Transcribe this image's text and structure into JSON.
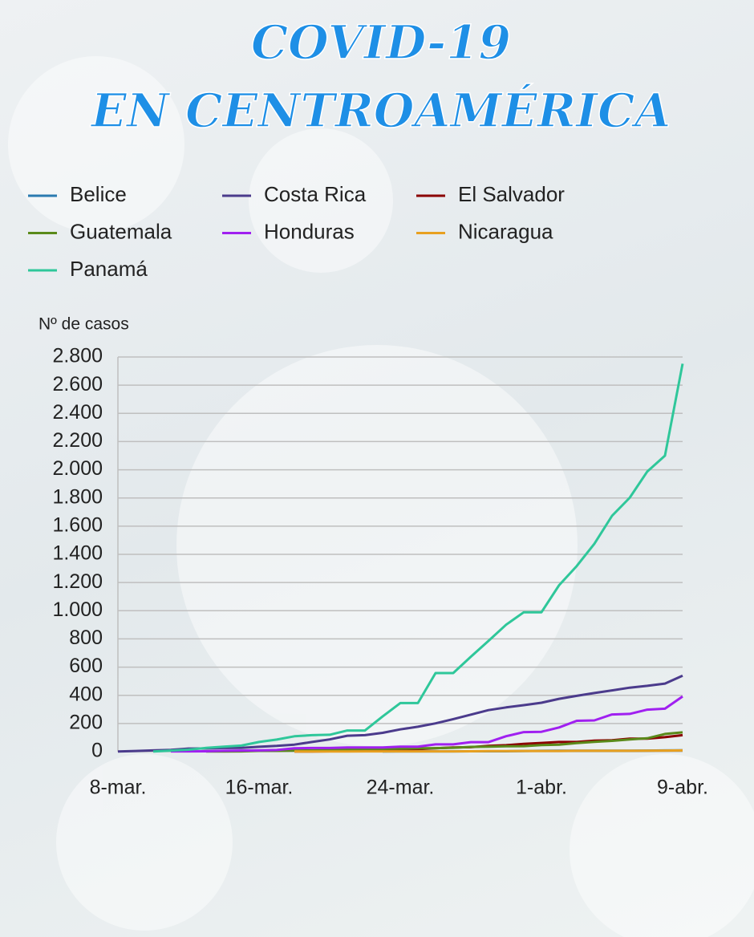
{
  "chart_data": {
    "type": "line",
    "title": "COVID-19",
    "subtitle": "EN CENTROAMÉRICA",
    "y_label": "Nº de casos",
    "categories": [
      "8-mar.",
      null,
      null,
      null,
      null,
      null,
      null,
      null,
      "16-mar.",
      null,
      null,
      null,
      null,
      null,
      null,
      null,
      "24-mar.",
      null,
      null,
      null,
      null,
      null,
      null,
      null,
      "1-abr.",
      null,
      null,
      null,
      null,
      null,
      null,
      null,
      "9-abr."
    ],
    "ylim": [
      0,
      2800
    ],
    "yticks": [
      0,
      200,
      400,
      600,
      800,
      {
        "value": 1000,
        "label": "1.000"
      },
      {
        "value": 1200,
        "label": "1.200"
      },
      {
        "value": 1400,
        "label": "1.400"
      },
      {
        "value": 1600,
        "label": "1.600"
      },
      {
        "value": 1800,
        "label": "1.800"
      },
      {
        "value": 2000,
        "label": "2.000"
      },
      {
        "value": 2200,
        "label": "2.200"
      },
      {
        "value": 2400,
        "label": "2.400"
      },
      {
        "value": 2600,
        "label": "2.600"
      },
      {
        "value": 2800,
        "label": "2.800"
      }
    ],
    "grid": true,
    "series": [
      {
        "name": "Belice",
        "color": "#2a7ab0",
        "values": [
          null,
          null,
          null,
          null,
          null,
          null,
          null,
          null,
          null,
          null,
          null,
          null,
          null,
          null,
          null,
          1,
          2,
          2,
          2,
          2,
          3,
          3,
          3,
          5,
          6,
          7,
          7,
          7,
          7,
          7,
          8,
          9,
          10
        ]
      },
      {
        "name": "Costa Rica",
        "color": "#4b3b8c",
        "values": [
          1,
          5,
          9,
          13,
          22,
          23,
          26,
          27,
          35,
          41,
          50,
          69,
          87,
          113,
          117,
          134,
          158,
          177,
          201,
          231,
          263,
          295,
          314,
          330,
          347,
          375,
          396,
          416,
          435,
          454,
          467,
          483,
          539
        ]
      },
      {
        "name": "El Salvador",
        "color": "#8b0000",
        "values": [
          null,
          null,
          null,
          null,
          null,
          null,
          null,
          null,
          null,
          null,
          1,
          1,
          3,
          5,
          5,
          9,
          13,
          19,
          24,
          30,
          32,
          41,
          46,
          56,
          62,
          69,
          69,
          78,
          81,
          93,
          93,
          103,
          117
        ]
      },
      {
        "name": "Guatemala",
        "color": "#5a8a1a",
        "values": [
          null,
          null,
          null,
          null,
          null,
          1,
          1,
          2,
          6,
          6,
          8,
          9,
          12,
          17,
          19,
          20,
          21,
          24,
          25,
          28,
          34,
          36,
          38,
          39,
          47,
          50,
          61,
          70,
          77,
          87,
          95,
          126,
          137
        ]
      },
      {
        "name": "Honduras",
        "color": "#a020f0",
        "values": [
          null,
          null,
          null,
          2,
          2,
          3,
          6,
          8,
          9,
          12,
          24,
          26,
          26,
          30,
          30,
          30,
          36,
          36,
          52,
          52,
          68,
          68,
          110,
          139,
          141,
          172,
          219,
          222,
          264,
          268,
          298,
          305,
          392
        ]
      },
      {
        "name": "Nicaragua",
        "color": "#e8a020",
        "values": [
          null,
          null,
          null,
          null,
          null,
          null,
          null,
          null,
          null,
          null,
          1,
          1,
          1,
          1,
          2,
          2,
          2,
          2,
          2,
          2,
          3,
          4,
          4,
          5,
          5,
          5,
          6,
          6,
          6,
          6,
          7,
          8,
          9
        ]
      },
      {
        "name": "Panamá",
        "color": "#2fc79a",
        "values": [
          null,
          null,
          1,
          8,
          14,
          27,
          36,
          43,
          69,
          86,
          109,
          117,
          120,
          150,
          150,
          250,
          345,
          345,
          558,
          558,
          674,
          786,
          901,
          989,
          989,
          1181,
          1317,
          1475,
          1673,
          1801,
          1988,
          2100,
          2752
        ]
      }
    ]
  }
}
